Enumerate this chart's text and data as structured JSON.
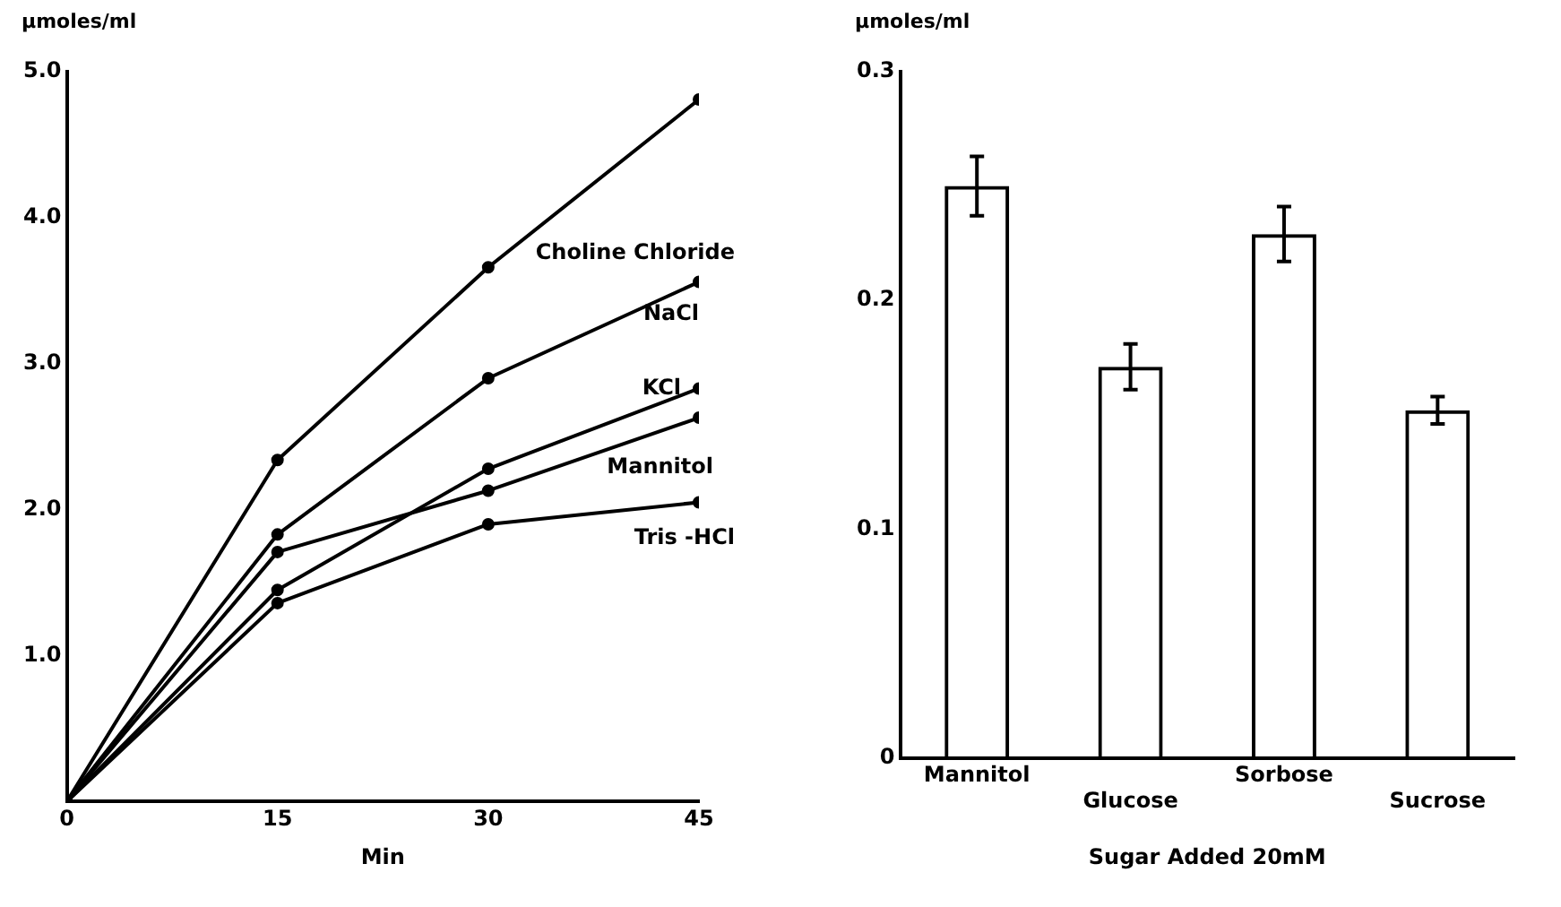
{
  "chart_data": [
    {
      "type": "line",
      "xlabel": "Min",
      "ylabel": "µmoles/ml",
      "x": [
        0,
        15,
        30,
        45
      ],
      "xlim": [
        0,
        45
      ],
      "xticks": [
        0,
        15,
        30,
        45
      ],
      "ylim": [
        0,
        5
      ],
      "yticks": [
        {
          "value": 1,
          "label": "1.0"
        },
        {
          "value": 2,
          "label": "2.0"
        },
        {
          "value": 3,
          "label": "3.0"
        },
        {
          "value": 4,
          "label": "4.0"
        },
        {
          "value": 5,
          "label": "5.0"
        }
      ],
      "grid": false,
      "legend": false,
      "marker": "circle",
      "line_style": "solid",
      "series": [
        {
          "name": "Choline Chloride",
          "color": "#000000",
          "values": [
            0,
            2.34,
            3.66,
            4.81
          ]
        },
        {
          "name": "NaCl",
          "color": "#000000",
          "values": [
            0,
            1.83,
            2.9,
            3.56
          ]
        },
        {
          "name": "KCl",
          "color": "#000000",
          "values": [
            0,
            1.45,
            2.28,
            2.83
          ]
        },
        {
          "name": "Mannitol",
          "color": "#000000",
          "values": [
            0,
            1.71,
            2.13,
            2.63
          ]
        },
        {
          "name": "Tris -HCl",
          "color": "#000000",
          "values": [
            0,
            1.36,
            1.9,
            2.05
          ]
        }
      ]
    },
    {
      "type": "bar",
      "xlabel": "Sugar Added 20mM",
      "ylabel": "µmoles/ml",
      "categories": [
        "Mannitol",
        "Glucose",
        "Sorbose",
        "Sucrose"
      ],
      "values": [
        0.25,
        0.171,
        0.229,
        0.152
      ],
      "errors": [
        0.013,
        0.01,
        0.012,
        0.006
      ],
      "color": "#000000",
      "ylim": [
        0,
        0.3
      ],
      "yticks": [
        0,
        0.1,
        0.2,
        0.3
      ],
      "grid": false,
      "legend": false
    }
  ]
}
